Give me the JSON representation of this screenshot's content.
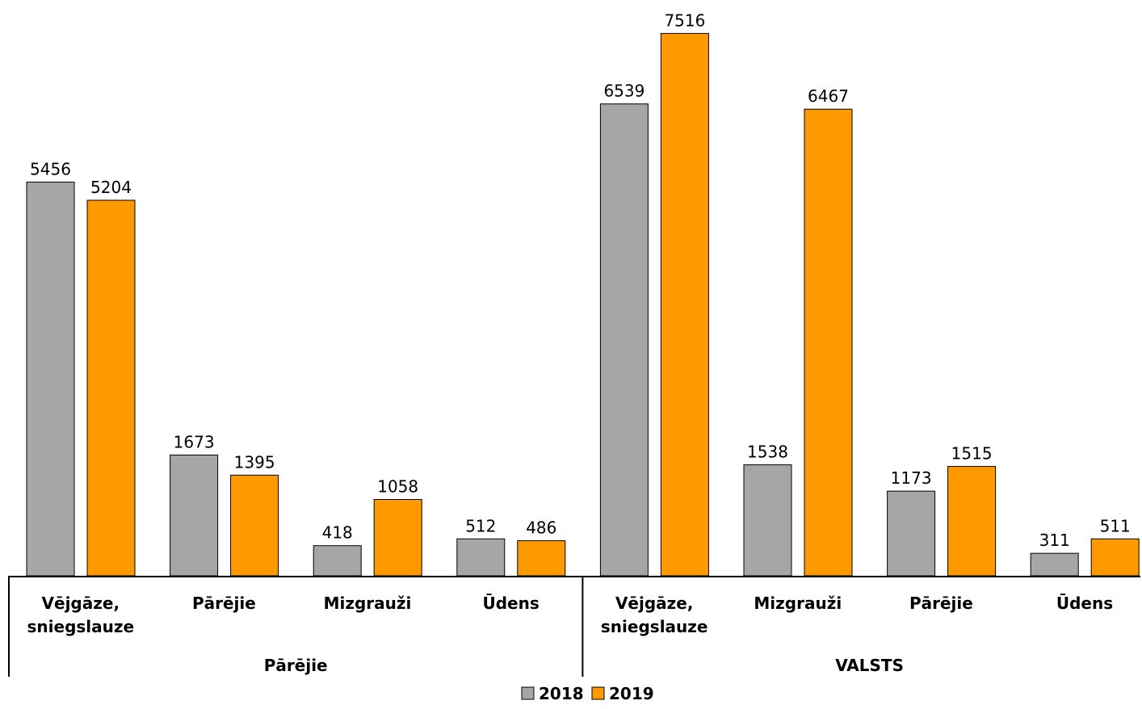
{
  "chart_data": {
    "type": "bar",
    "groups": [
      {
        "label": "Pārējie",
        "categories": [
          "Vējgāze, sniegslauze",
          "Pārējie",
          "Mizgrauži",
          "Ūdens"
        ]
      },
      {
        "label": "VALSTS",
        "categories": [
          "Vējgāze, sniegslauze",
          "Mizgrauži",
          "Pārējie",
          "Ūdens"
        ]
      }
    ],
    "series": [
      {
        "name": "2018",
        "color": "#a6a6a6",
        "values": [
          5456,
          1673,
          418,
          512,
          6539,
          1538,
          1173,
          311
        ]
      },
      {
        "name": "2019",
        "color": "#ff9900",
        "values": [
          5204,
          1395,
          1058,
          486,
          7516,
          6467,
          1515,
          511
        ]
      }
    ],
    "ylim": [
      0,
      7800
    ],
    "grid": false,
    "legend_position": "bottom",
    "title": "",
    "xlabel": "",
    "ylabel": ""
  }
}
